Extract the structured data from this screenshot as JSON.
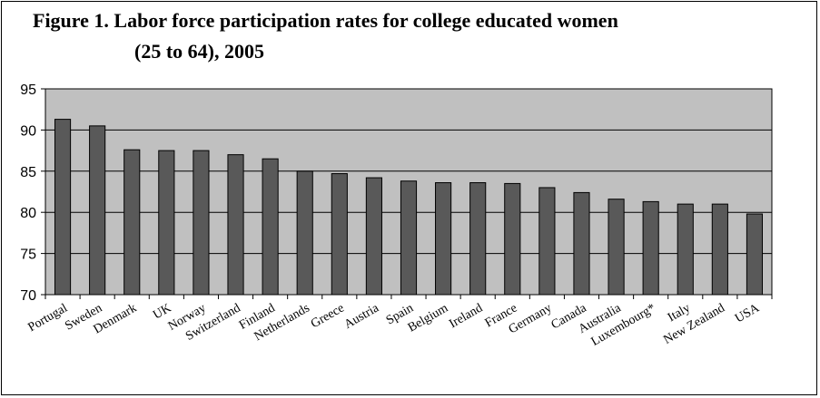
{
  "chart_data": {
    "type": "bar",
    "title_line1": "Figure 1. Labor force participation rates for college educated women",
    "title_line2": "(25 to 64), 2005",
    "categories": [
      "Portugal",
      "Sweden",
      "Denmark",
      "UK",
      "Norway",
      "Switzerland",
      "Finland",
      "Netherlands",
      "Greece",
      "Austria",
      "Spain",
      "Belgium",
      "Ireland",
      "France",
      "Germany",
      "Canada",
      "Australia",
      "Luxembourg*",
      "Italy",
      "New Zealand",
      "USA"
    ],
    "values": [
      91.3,
      90.5,
      87.6,
      87.5,
      87.5,
      87.0,
      86.5,
      85.0,
      84.7,
      84.2,
      83.8,
      83.6,
      83.6,
      83.5,
      83.0,
      82.4,
      81.6,
      81.3,
      81.0,
      81.0,
      79.8
    ],
    "ylim": [
      70,
      95
    ],
    "yticks": [
      70,
      75,
      80,
      85,
      90,
      95
    ],
    "grid": true,
    "colors": {
      "plot_bg": "#c0c0c0",
      "bar": "#595959",
      "grid": "#000000"
    }
  }
}
